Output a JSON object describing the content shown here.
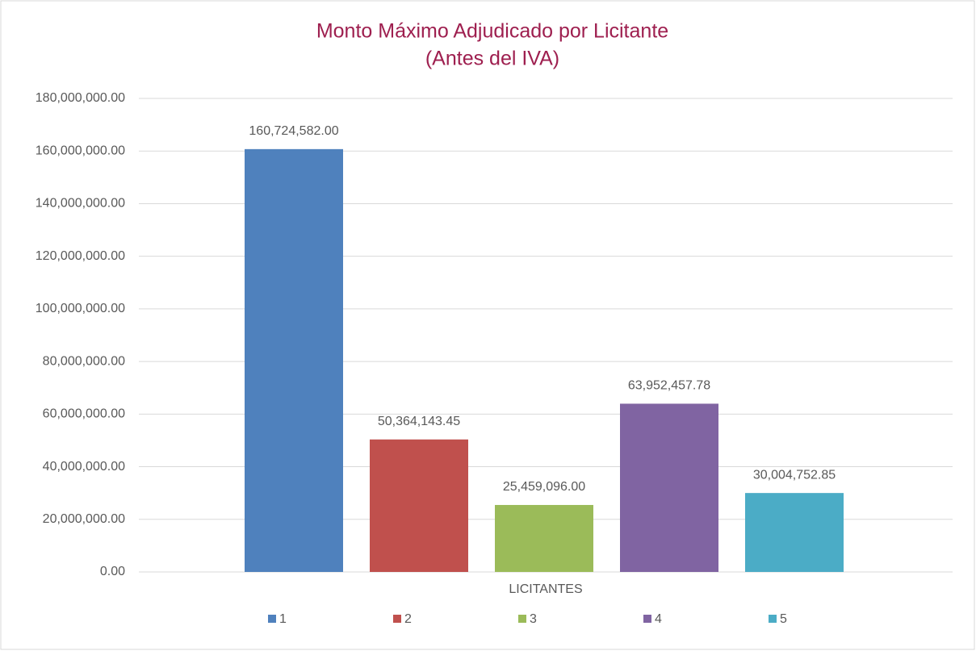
{
  "chart_data": {
    "type": "bar",
    "title": "Monto Máximo Adjudicado por Licitante",
    "subtitle": "(Antes del IVA)",
    "categories": [
      "LICITANTES"
    ],
    "series": [
      {
        "name": "1",
        "color": "#4f81bd",
        "values": [
          160724582
        ],
        "value_labels": [
          "160,724,582.00"
        ]
      },
      {
        "name": "2",
        "color": "#c0504d",
        "values": [
          50364143.45
        ],
        "value_labels": [
          "50,364,143.45"
        ]
      },
      {
        "name": "3",
        "color": "#9bbb59",
        "values": [
          25459096
        ],
        "value_labels": [
          "25,459,096.00"
        ]
      },
      {
        "name": "4",
        "color": "#8064a2",
        "values": [
          63952457.78
        ],
        "value_labels": [
          "63,952,457.78"
        ]
      },
      {
        "name": "5",
        "color": "#4bacc6",
        "values": [
          30004752.85
        ],
        "value_labels": [
          "30,004,752.85"
        ]
      }
    ],
    "ylim": [
      0,
      180000000
    ],
    "yticks": [
      {
        "value": 0,
        "label": "0.00"
      },
      {
        "value": 20000000,
        "label": "20,000,000.00"
      },
      {
        "value": 40000000,
        "label": "40,000,000.00"
      },
      {
        "value": 60000000,
        "label": "60,000,000.00"
      },
      {
        "value": 80000000,
        "label": "80,000,000.00"
      },
      {
        "value": 100000000,
        "label": "100,000,000.00"
      },
      {
        "value": 120000000,
        "label": "120,000,000.00"
      },
      {
        "value": 140000000,
        "label": "140,000,000.00"
      },
      {
        "value": 160000000,
        "label": "160,000,000.00"
      },
      {
        "value": 180000000,
        "label": "180,000,000.00"
      }
    ],
    "grid": true,
    "legend": "bottom"
  }
}
